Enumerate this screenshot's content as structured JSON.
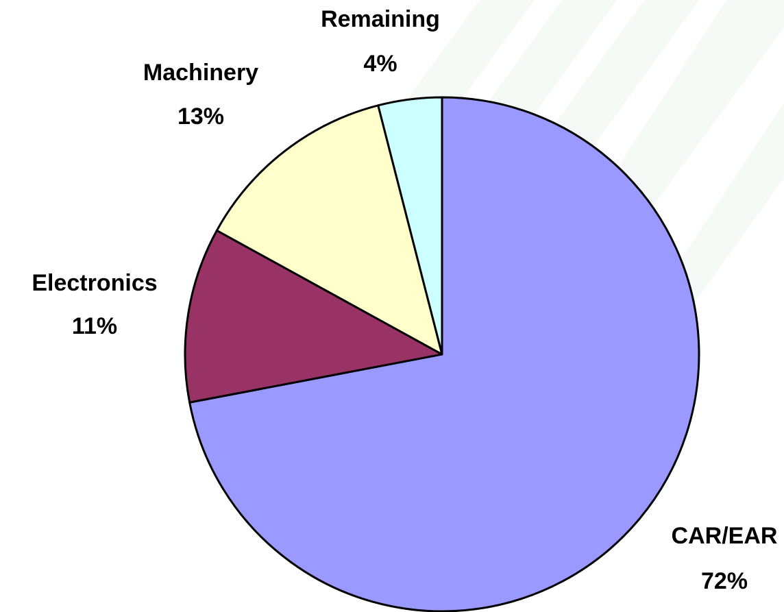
{
  "chart_data": {
    "type": "pie",
    "categories": [
      "CAR/EAR",
      "Electronics",
      "Machinery",
      "Remaining"
    ],
    "values": [
      72,
      11,
      13,
      4
    ],
    "value_labels": [
      "72%",
      "11%",
      "13%",
      "4%"
    ],
    "colors": [
      "#9999ff",
      "#993366",
      "#ffffcc",
      "#ccffff"
    ]
  }
}
